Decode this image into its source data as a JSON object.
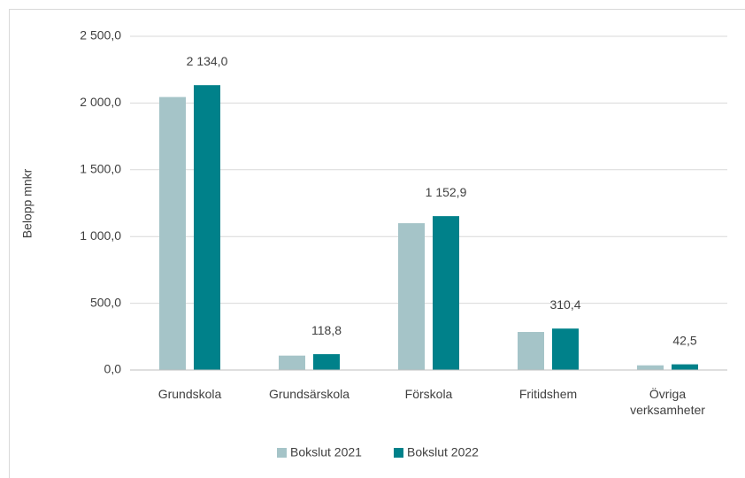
{
  "chart_data": {
    "type": "bar",
    "ylabel": "Belopp mnkr",
    "categories": [
      "Grundskola",
      "Grundsärskola",
      "Förskola",
      "Fritidshem",
      "Övriga verksamheter"
    ],
    "series": [
      {
        "name": "Bokslut 2021",
        "color": "#a5c4c8",
        "values": [
          2045,
          108,
          1100,
          285,
          35
        ]
      },
      {
        "name": "Bokslut 2022",
        "color": "#00818a",
        "values": [
          2134.0,
          118.8,
          1152.9,
          310.4,
          42.5
        ],
        "value_labels": [
          "2 134,0",
          "118,8",
          "1 152,9",
          "310,4",
          "42,5"
        ]
      }
    ],
    "ylim": [
      0,
      2500
    ],
    "yticks": [
      {
        "value": 0,
        "label": "0,0"
      },
      {
        "value": 500,
        "label": "500,0"
      },
      {
        "value": 1000,
        "label": "1 000,0"
      },
      {
        "value": 1500,
        "label": "1 500,0"
      },
      {
        "value": 2000,
        "label": "2 000,0"
      },
      {
        "value": 2500,
        "label": "2 500,0"
      }
    ],
    "grid": true,
    "legend": "bottom"
  }
}
